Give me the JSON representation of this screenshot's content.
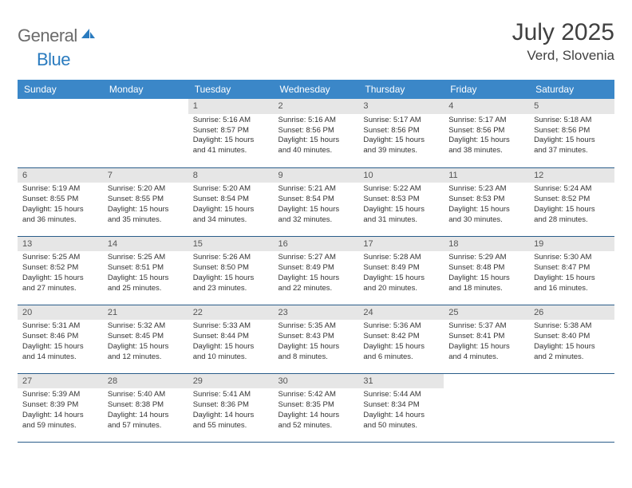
{
  "brand": {
    "general": "General",
    "blue": "Blue"
  },
  "title": {
    "month": "July 2025",
    "location": "Verd, Slovenia"
  },
  "colors": {
    "header_bg": "#3b87c8",
    "header_text": "#ffffff",
    "rule": "#2a5d8a",
    "daynum_bg": "#e6e6e6",
    "logo_gray": "#6b6b6b",
    "logo_blue": "#2a7bbf",
    "body_text": "#333333"
  },
  "weekdays": [
    "Sunday",
    "Monday",
    "Tuesday",
    "Wednesday",
    "Thursday",
    "Friday",
    "Saturday"
  ],
  "weeks": [
    [
      null,
      null,
      {
        "n": "1",
        "sunrise": "5:16 AM",
        "sunset": "8:57 PM",
        "daylight": "15 hours and 41 minutes."
      },
      {
        "n": "2",
        "sunrise": "5:16 AM",
        "sunset": "8:56 PM",
        "daylight": "15 hours and 40 minutes."
      },
      {
        "n": "3",
        "sunrise": "5:17 AM",
        "sunset": "8:56 PM",
        "daylight": "15 hours and 39 minutes."
      },
      {
        "n": "4",
        "sunrise": "5:17 AM",
        "sunset": "8:56 PM",
        "daylight": "15 hours and 38 minutes."
      },
      {
        "n": "5",
        "sunrise": "5:18 AM",
        "sunset": "8:56 PM",
        "daylight": "15 hours and 37 minutes."
      }
    ],
    [
      {
        "n": "6",
        "sunrise": "5:19 AM",
        "sunset": "8:55 PM",
        "daylight": "15 hours and 36 minutes."
      },
      {
        "n": "7",
        "sunrise": "5:20 AM",
        "sunset": "8:55 PM",
        "daylight": "15 hours and 35 minutes."
      },
      {
        "n": "8",
        "sunrise": "5:20 AM",
        "sunset": "8:54 PM",
        "daylight": "15 hours and 34 minutes."
      },
      {
        "n": "9",
        "sunrise": "5:21 AM",
        "sunset": "8:54 PM",
        "daylight": "15 hours and 32 minutes."
      },
      {
        "n": "10",
        "sunrise": "5:22 AM",
        "sunset": "8:53 PM",
        "daylight": "15 hours and 31 minutes."
      },
      {
        "n": "11",
        "sunrise": "5:23 AM",
        "sunset": "8:53 PM",
        "daylight": "15 hours and 30 minutes."
      },
      {
        "n": "12",
        "sunrise": "5:24 AM",
        "sunset": "8:52 PM",
        "daylight": "15 hours and 28 minutes."
      }
    ],
    [
      {
        "n": "13",
        "sunrise": "5:25 AM",
        "sunset": "8:52 PM",
        "daylight": "15 hours and 27 minutes."
      },
      {
        "n": "14",
        "sunrise": "5:25 AM",
        "sunset": "8:51 PM",
        "daylight": "15 hours and 25 minutes."
      },
      {
        "n": "15",
        "sunrise": "5:26 AM",
        "sunset": "8:50 PM",
        "daylight": "15 hours and 23 minutes."
      },
      {
        "n": "16",
        "sunrise": "5:27 AM",
        "sunset": "8:49 PM",
        "daylight": "15 hours and 22 minutes."
      },
      {
        "n": "17",
        "sunrise": "5:28 AM",
        "sunset": "8:49 PM",
        "daylight": "15 hours and 20 minutes."
      },
      {
        "n": "18",
        "sunrise": "5:29 AM",
        "sunset": "8:48 PM",
        "daylight": "15 hours and 18 minutes."
      },
      {
        "n": "19",
        "sunrise": "5:30 AM",
        "sunset": "8:47 PM",
        "daylight": "15 hours and 16 minutes."
      }
    ],
    [
      {
        "n": "20",
        "sunrise": "5:31 AM",
        "sunset": "8:46 PM",
        "daylight": "15 hours and 14 minutes."
      },
      {
        "n": "21",
        "sunrise": "5:32 AM",
        "sunset": "8:45 PM",
        "daylight": "15 hours and 12 minutes."
      },
      {
        "n": "22",
        "sunrise": "5:33 AM",
        "sunset": "8:44 PM",
        "daylight": "15 hours and 10 minutes."
      },
      {
        "n": "23",
        "sunrise": "5:35 AM",
        "sunset": "8:43 PM",
        "daylight": "15 hours and 8 minutes."
      },
      {
        "n": "24",
        "sunrise": "5:36 AM",
        "sunset": "8:42 PM",
        "daylight": "15 hours and 6 minutes."
      },
      {
        "n": "25",
        "sunrise": "5:37 AM",
        "sunset": "8:41 PM",
        "daylight": "15 hours and 4 minutes."
      },
      {
        "n": "26",
        "sunrise": "5:38 AM",
        "sunset": "8:40 PM",
        "daylight": "15 hours and 2 minutes."
      }
    ],
    [
      {
        "n": "27",
        "sunrise": "5:39 AM",
        "sunset": "8:39 PM",
        "daylight": "14 hours and 59 minutes."
      },
      {
        "n": "28",
        "sunrise": "5:40 AM",
        "sunset": "8:38 PM",
        "daylight": "14 hours and 57 minutes."
      },
      {
        "n": "29",
        "sunrise": "5:41 AM",
        "sunset": "8:36 PM",
        "daylight": "14 hours and 55 minutes."
      },
      {
        "n": "30",
        "sunrise": "5:42 AM",
        "sunset": "8:35 PM",
        "daylight": "14 hours and 52 minutes."
      },
      {
        "n": "31",
        "sunrise": "5:44 AM",
        "sunset": "8:34 PM",
        "daylight": "14 hours and 50 minutes."
      },
      null,
      null
    ]
  ],
  "labels": {
    "sunrise": "Sunrise: ",
    "sunset": "Sunset: ",
    "daylight": "Daylight: "
  }
}
